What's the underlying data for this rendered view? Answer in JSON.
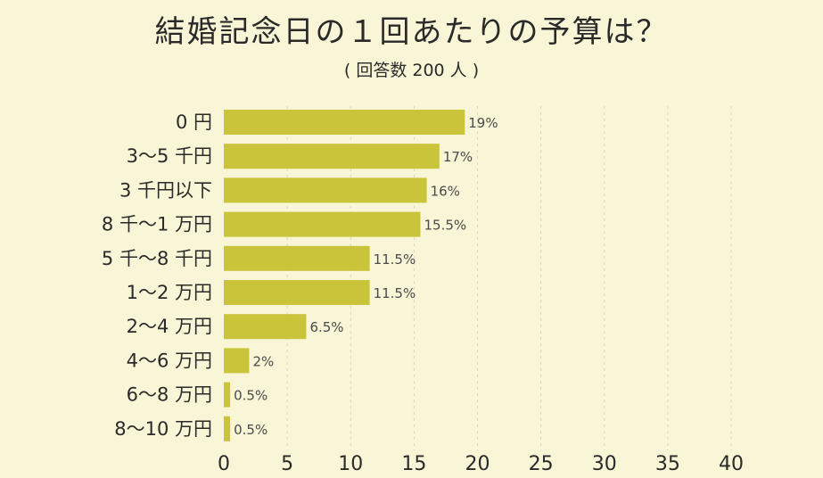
{
  "chart_data": {
    "type": "bar",
    "orientation": "horizontal",
    "title": "結婚記念日の１回あたりの予算は？",
    "subtitle": "( 回答数 200 人 )",
    "categories": [
      "0 円",
      "3～5 千円",
      "3 千円以下",
      "8 千～1 万円",
      "5 千～8 千円",
      "1～2 万円",
      "2～4 万円",
      "4～6 万円",
      "6～8 万円",
      "8～10 万円"
    ],
    "values": [
      19,
      17,
      16,
      15.5,
      11.5,
      11.5,
      6.5,
      2,
      0.5,
      0.5
    ],
    "value_labels": [
      "19%",
      "17%",
      "16%",
      "15.5%",
      "11.5%",
      "11.5%",
      "6.5%",
      "2%",
      "0.5%",
      "0.5%"
    ],
    "xlim": [
      0,
      40
    ],
    "xticks": [
      0,
      5,
      10,
      15,
      20,
      25,
      30,
      35,
      40
    ],
    "grid": "vertical dashed",
    "bar_color": "#c9c43a",
    "background_color": "#f8f6d6"
  }
}
